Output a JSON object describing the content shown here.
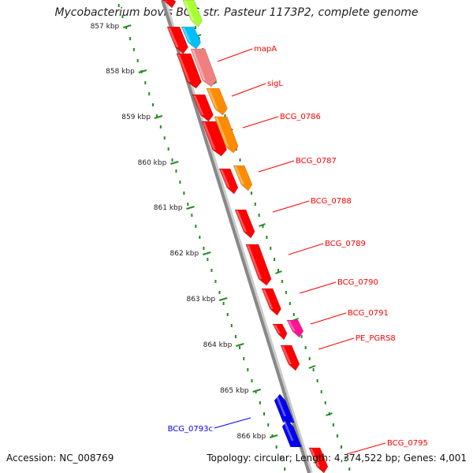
{
  "title": "Mycobacterium bovis BCG str. Pasteur 1173P2, complete genome",
  "accession": "Accession: NC_008769",
  "summary": "Topology: circular; Length: 4,374,522 bp; Genes: 4,001",
  "ticks": [
    "857 kbp",
    "858 kbp",
    "859 kbp",
    "860 kbp",
    "861 kbp",
    "862 kbp",
    "863 kbp",
    "864 kbp",
    "865 kbp",
    "866 kbp"
  ],
  "genes_forward": [
    {
      "label": "mapA",
      "color": "#ff0000"
    },
    {
      "label": "sigL",
      "color": "#ff0000"
    },
    {
      "label": "BCG_0786",
      "color": "#ff0000"
    },
    {
      "label": "BCG_0787",
      "color": "#ff0000"
    },
    {
      "label": "BCG_0788",
      "color": "#ff0000"
    },
    {
      "label": "BCG_0789",
      "color": "#ff0000"
    },
    {
      "label": "BCG_0790",
      "color": "#ff0000"
    },
    {
      "label": "BCG_0791",
      "color": "#ff0000"
    },
    {
      "label": "PE_PGRS8",
      "color": "#ff0000"
    },
    {
      "label": "BCG_0795",
      "color": "#ff0000"
    }
  ],
  "genes_reverse": [
    {
      "label": "BCG_0793c",
      "color": "#0000ee"
    }
  ],
  "colors": {
    "cds_forward": "#ff0000",
    "cds_reverse": "#0000ee",
    "cog_orange": "#ff8c00",
    "cog_pink": "#f08080",
    "cog_cyan": "#00bfff",
    "cog_magenta": "#ff1493",
    "cog_lime": "#aaff33",
    "backbone": "#888888",
    "tick": "#228b22"
  }
}
